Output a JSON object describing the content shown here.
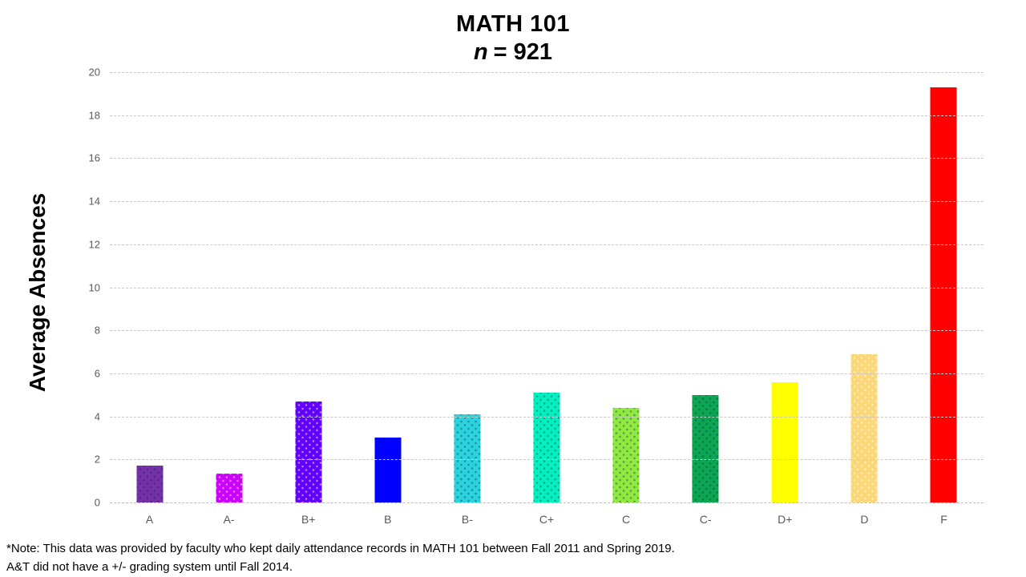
{
  "title": "MATH 101",
  "subtitle": {
    "prefix": "n",
    "rest": "= 921"
  },
  "footnote": {
    "line1": "*Note: This data was provided by faculty who kept daily attendance records in MATH 101 between Fall 2011 and Spring 2019.",
    "line2": "A&T did not have a +/- grading system until Fall 2014."
  },
  "chart_data": {
    "type": "bar",
    "title": "MATH 101",
    "subtitle": "n = 921",
    "xlabel": "",
    "ylabel": "Average Absences",
    "ylim": [
      0,
      20
    ],
    "y_ticks": [
      0,
      2,
      4,
      6,
      8,
      10,
      12,
      14,
      16,
      18,
      20
    ],
    "grid": "horizontal-dashed",
    "legend": "none",
    "categories": [
      "A",
      "A-",
      "B+",
      "B",
      "B-",
      "C+",
      "C",
      "C-",
      "D+",
      "D",
      "F"
    ],
    "values": [
      1.7,
      1.35,
      4.7,
      3.0,
      4.1,
      5.1,
      4.4,
      5.0,
      5.6,
      6.9,
      19.3
    ],
    "bar_colors": [
      "#7531A6",
      "#CC00FF",
      "#6100FF",
      "#0000FF",
      "#2BD3DB",
      "#00F1BD",
      "#8FE93E",
      "#0BA750",
      "#FFFF00",
      "#FBD778",
      "#FF0000"
    ],
    "bar_patterns": [
      "dots-dark",
      "dots-light",
      "dots-light",
      "none",
      "dots-dark",
      "dots-dark",
      "dots-dark",
      "dots-dark",
      "none",
      "dots-light",
      "none"
    ],
    "tick_label_color": "#595959",
    "gridline_color": "#C9C9C9"
  }
}
